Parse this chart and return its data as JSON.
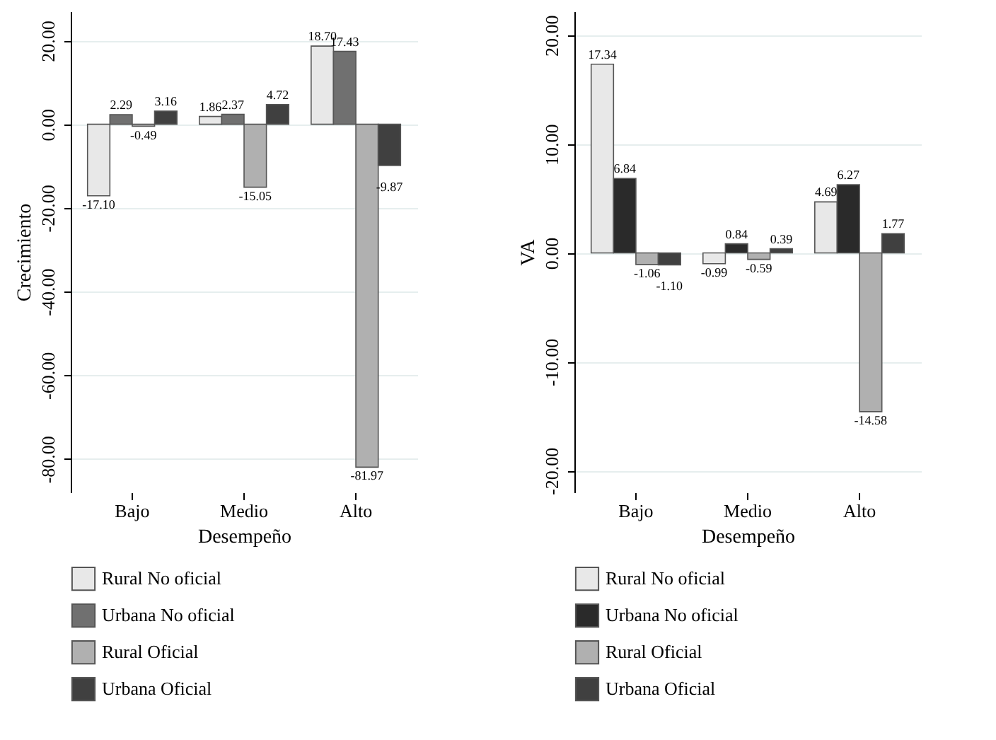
{
  "chart_data": [
    {
      "type": "bar",
      "xlabel": "Desempeño",
      "ylabel": "Crecimiento",
      "categories": [
        "Bajo",
        "Medio",
        "Alto"
      ],
      "ylim": [
        -88,
        27
      ],
      "yticks": [
        {
          "value": 20,
          "label": "20.00"
        },
        {
          "value": 0,
          "label": "0.00"
        },
        {
          "value": -20,
          "label": "-20.00"
        },
        {
          "value": -40,
          "label": "-40.00"
        },
        {
          "value": -60,
          "label": "-60.00"
        },
        {
          "value": -80,
          "label": "-80.00"
        }
      ],
      "grid": "y",
      "legend": "bottom",
      "series": [
        {
          "name": "Rural No oficial",
          "color": "#e8e8e8",
          "values": [
            -17.1,
            1.86,
            18.7
          ],
          "value_labels": [
            "-17.10",
            "1.86",
            "18.70"
          ]
        },
        {
          "name": "Urbana No oficial",
          "color": "#707070",
          "values": [
            2.29,
            2.37,
            17.43
          ],
          "value_labels": [
            "2.29",
            "2.37",
            "17.43"
          ]
        },
        {
          "name": "Rural Oficial",
          "color": "#b0b0b0",
          "values": [
            -0.49,
            -15.05,
            -81.97
          ],
          "value_labels": [
            "-0.49",
            "-15.05",
            "-81.97"
          ]
        },
        {
          "name": "Urbana Oficial",
          "color": "#404040",
          "values": [
            3.16,
            4.72,
            -9.87
          ],
          "value_labels": [
            "3.16",
            "4.72",
            "-9.87"
          ]
        }
      ]
    },
    {
      "type": "bar",
      "xlabel": "Desempeño",
      "ylabel": "VA",
      "categories": [
        "Bajo",
        "Medio",
        "Alto"
      ],
      "ylim": [
        -22,
        22.2
      ],
      "yticks": [
        {
          "value": 20,
          "label": "20.00"
        },
        {
          "value": 10,
          "label": "10.00"
        },
        {
          "value": 0,
          "label": "0.00"
        },
        {
          "value": -10,
          "label": "-10.00"
        },
        {
          "value": -20,
          "label": "-20.00"
        }
      ],
      "grid": "y",
      "legend": "bottom",
      "series": [
        {
          "name": "Rural No oficial",
          "color": "#e8e8e8",
          "values": [
            17.34,
            -0.99,
            4.69
          ],
          "value_labels": [
            "17.34",
            "-0.99",
            "4.69"
          ]
        },
        {
          "name": "Urbana No oficial",
          "color": "#2a2a2a",
          "values": [
            6.84,
            0.84,
            6.27
          ],
          "value_labels": [
            "6.84",
            "0.84",
            "6.27"
          ]
        },
        {
          "name": "Rural Oficial",
          "color": "#b0b0b0",
          "values": [
            -1.06,
            -0.59,
            -14.58
          ],
          "value_labels": [
            "-1.06",
            "-0.59",
            "-14.58"
          ]
        },
        {
          "name": "Urbana Oficial",
          "color": "#404040",
          "values": [
            -1.1,
            0.39,
            1.77
          ],
          "value_labels": [
            "-1.10",
            "0.39",
            "1.77"
          ]
        }
      ]
    }
  ]
}
